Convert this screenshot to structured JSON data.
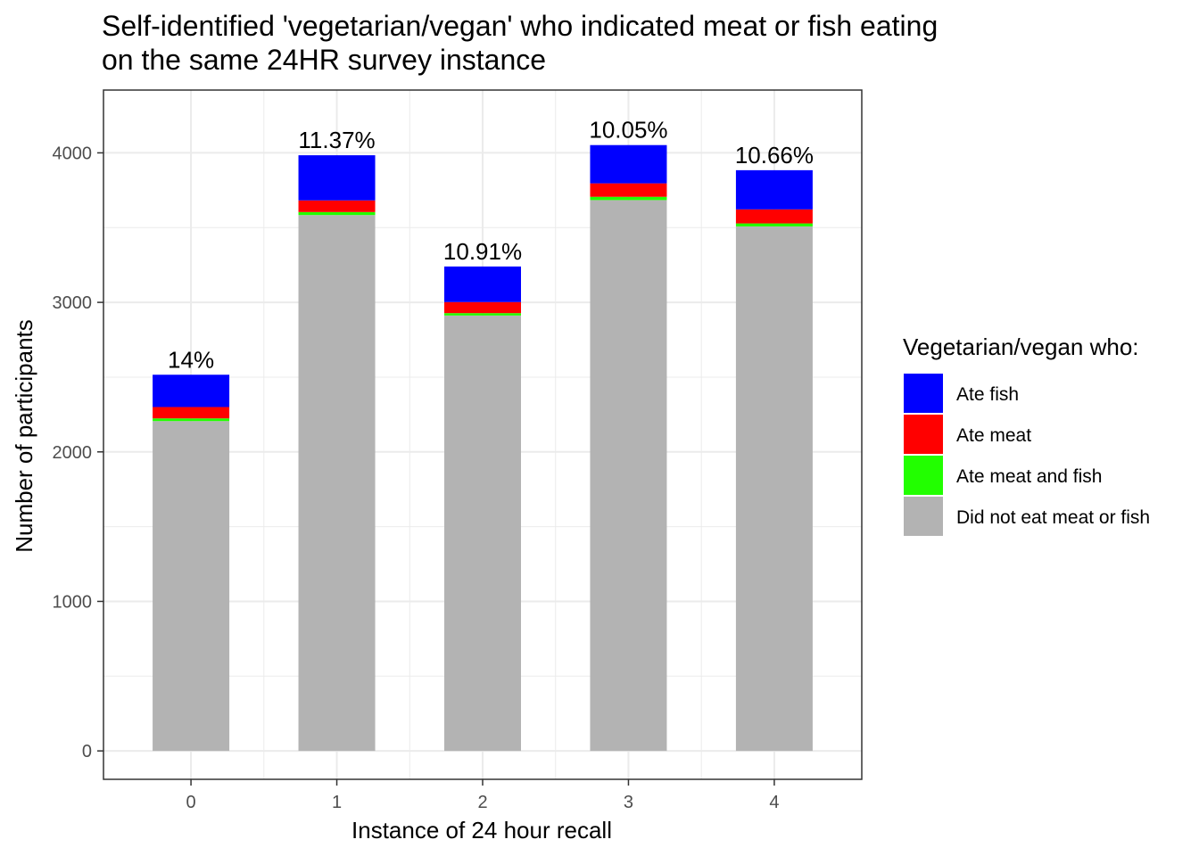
{
  "chart_data": {
    "type": "bar",
    "stacked": true,
    "title_lines": [
      "Self-identified 'vegetarian/vegan' who indicated meat or fish eating",
      "on the same 24HR survey instance"
    ],
    "xlabel": "Instance of 24 hour recall",
    "ylabel": "Number of participants",
    "categories": [
      "0",
      "1",
      "2",
      "3",
      "4"
    ],
    "ylim": [
      -190,
      4420
    ],
    "yticks": [
      0,
      1000,
      2000,
      3000,
      4000
    ],
    "grid": true,
    "series": [
      {
        "name": "Did not eat meat or fish",
        "color": "#b3b3b3",
        "values": [
          2206,
          3584,
          2912,
          3684,
          3508
        ]
      },
      {
        "name": "Ate meat and fish",
        "color": "#22ff00",
        "values": [
          18,
          20,
          16,
          22,
          20
        ]
      },
      {
        "name": "Ate meat",
        "color": "#ff0000",
        "values": [
          76,
          78,
          74,
          90,
          94
        ]
      },
      {
        "name": "Ate fish",
        "color": "#0000ff",
        "values": [
          216,
          302,
          238,
          256,
          262
        ]
      }
    ],
    "bar_labels": [
      "14%",
      "11.37%",
      "10.91%",
      "10.05%",
      "10.66%"
    ],
    "legend": {
      "title": "Vegetarian/vegan who:",
      "placement": "right",
      "entries": [
        {
          "label": "Ate fish",
          "color": "#0000ff"
        },
        {
          "label": "Ate meat",
          "color": "#ff0000"
        },
        {
          "label": "Ate meat and fish",
          "color": "#22ff00"
        },
        {
          "label": "Did not eat meat or fish",
          "color": "#b3b3b3"
        }
      ]
    }
  }
}
